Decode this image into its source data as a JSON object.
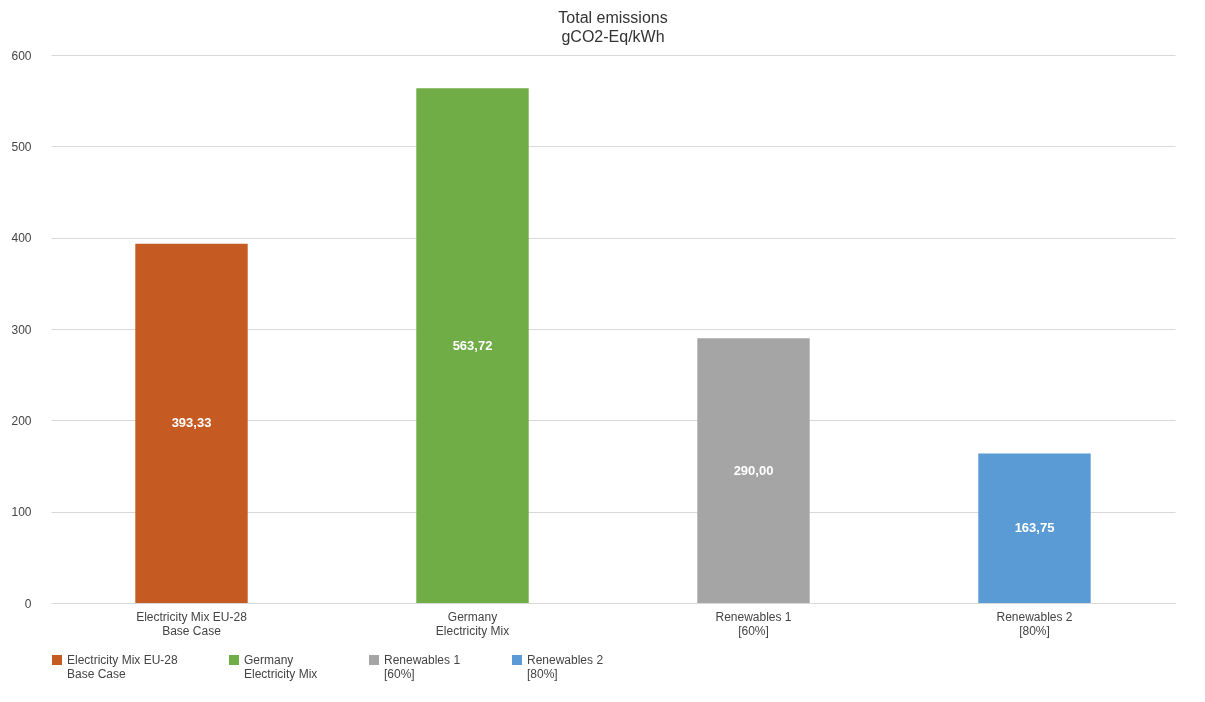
{
  "chart_data": {
    "type": "bar",
    "title": "Total emissions",
    "subtitle": "gCO2-Eq/kWh",
    "categories": [
      "Electricity Mix EU-28\nBase Case",
      "Germany\nElectricity Mix",
      "Renewables 1\n[60%]",
      "Renewables 2\n[80%]"
    ],
    "series": [
      {
        "name": "Electricity Mix EU-28\nBase Case",
        "color": "#c55a22",
        "values": [
          393.33,
          null,
          null,
          null
        ],
        "value_labels": [
          "393,33",
          null,
          null,
          null
        ]
      },
      {
        "name": "Germany\nElectricity Mix",
        "color": "#70ad47",
        "values": [
          null,
          563.72,
          null,
          null
        ],
        "value_labels": [
          null,
          "563,72",
          null,
          null
        ]
      },
      {
        "name": "Renewables 1\n[60%]",
        "color": "#a5a5a5",
        "values": [
          null,
          null,
          290.0,
          null
        ],
        "value_labels": [
          null,
          null,
          "290,00",
          null
        ]
      },
      {
        "name": "Renewables 2\n[80%]",
        "color": "#5b9bd5",
        "values": [
          null,
          null,
          null,
          163.75
        ],
        "value_labels": [
          null,
          null,
          null,
          "163,75"
        ]
      }
    ],
    "ylim": [
      0,
      600
    ],
    "yticks": [
      0,
      100,
      200,
      300,
      400,
      500,
      600
    ],
    "grid": "y",
    "legend": "bottom"
  }
}
